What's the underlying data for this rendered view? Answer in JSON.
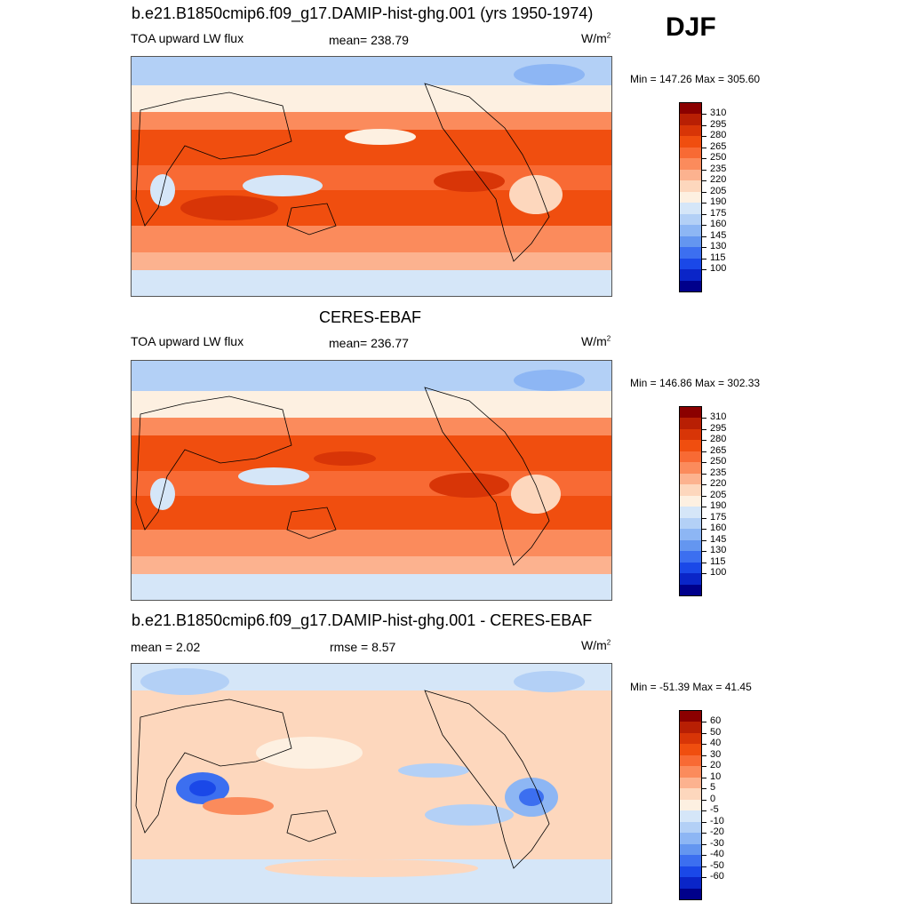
{
  "season": "DJF",
  "panels": [
    {
      "title": "b.e21.B1850cmip6.f09_g17.DAMIP-hist-ghg.001 (yrs 1950-1974)",
      "left_label": "TOA upward LW flux",
      "center_label": "mean= 238.79",
      "units": "W/m",
      "units_sup": "2",
      "minmax": "Min = 147.26 Max = 305.60",
      "map_desc": "Model TOA upward longwave flux, global map"
    },
    {
      "title": "CERES-EBAF",
      "left_label": "TOA upward LW flux",
      "center_label": "mean= 236.77",
      "units": "W/m",
      "units_sup": "2",
      "minmax": "Min = 146.86 Max = 302.33",
      "map_desc": "Observed TOA upward longwave flux, global map"
    },
    {
      "title": "b.e21.B1850cmip6.f09_g17.DAMIP-hist-ghg.001 - CERES-EBAF",
      "left_label": "mean =   2.02",
      "center_label": "rmse =   8.57",
      "units": "W/m",
      "units_sup": "2",
      "minmax": "Min = -51.39 Max =  41.45",
      "map_desc": "Model minus observation difference map"
    }
  ],
  "colorbars": {
    "absolute": {
      "labels": [
        "310",
        "295",
        "280",
        "265",
        "250",
        "235",
        "220",
        "205",
        "190",
        "175",
        "160",
        "145",
        "130",
        "115",
        "100"
      ],
      "colors": [
        "#8b0000",
        "#b81f04",
        "#d83507",
        "#f04e0f",
        "#f86a34",
        "#fb8b5c",
        "#fcb28f",
        "#fdd7bd",
        "#fdf0e1",
        "#d5e6f8",
        "#b3d0f6",
        "#8db6f4",
        "#6496f0",
        "#3c6ff0",
        "#1a48e8",
        "#0a25c8",
        "#00008b"
      ]
    },
    "difference": {
      "labels": [
        "60",
        "50",
        "40",
        "30",
        "20",
        "10",
        "5",
        "0",
        "-5",
        "-10",
        "-20",
        "-30",
        "-40",
        "-50",
        "-60"
      ],
      "colors": [
        "#8b0000",
        "#b81f04",
        "#d83507",
        "#f04e0f",
        "#f86a34",
        "#fb8b5c",
        "#fcb28f",
        "#fdd7bd",
        "#fdf0e1",
        "#d5e6f8",
        "#b3d0f6",
        "#8db6f4",
        "#6496f0",
        "#3c6ff0",
        "#1a48e8",
        "#0a25c8",
        "#00008b"
      ]
    }
  }
}
